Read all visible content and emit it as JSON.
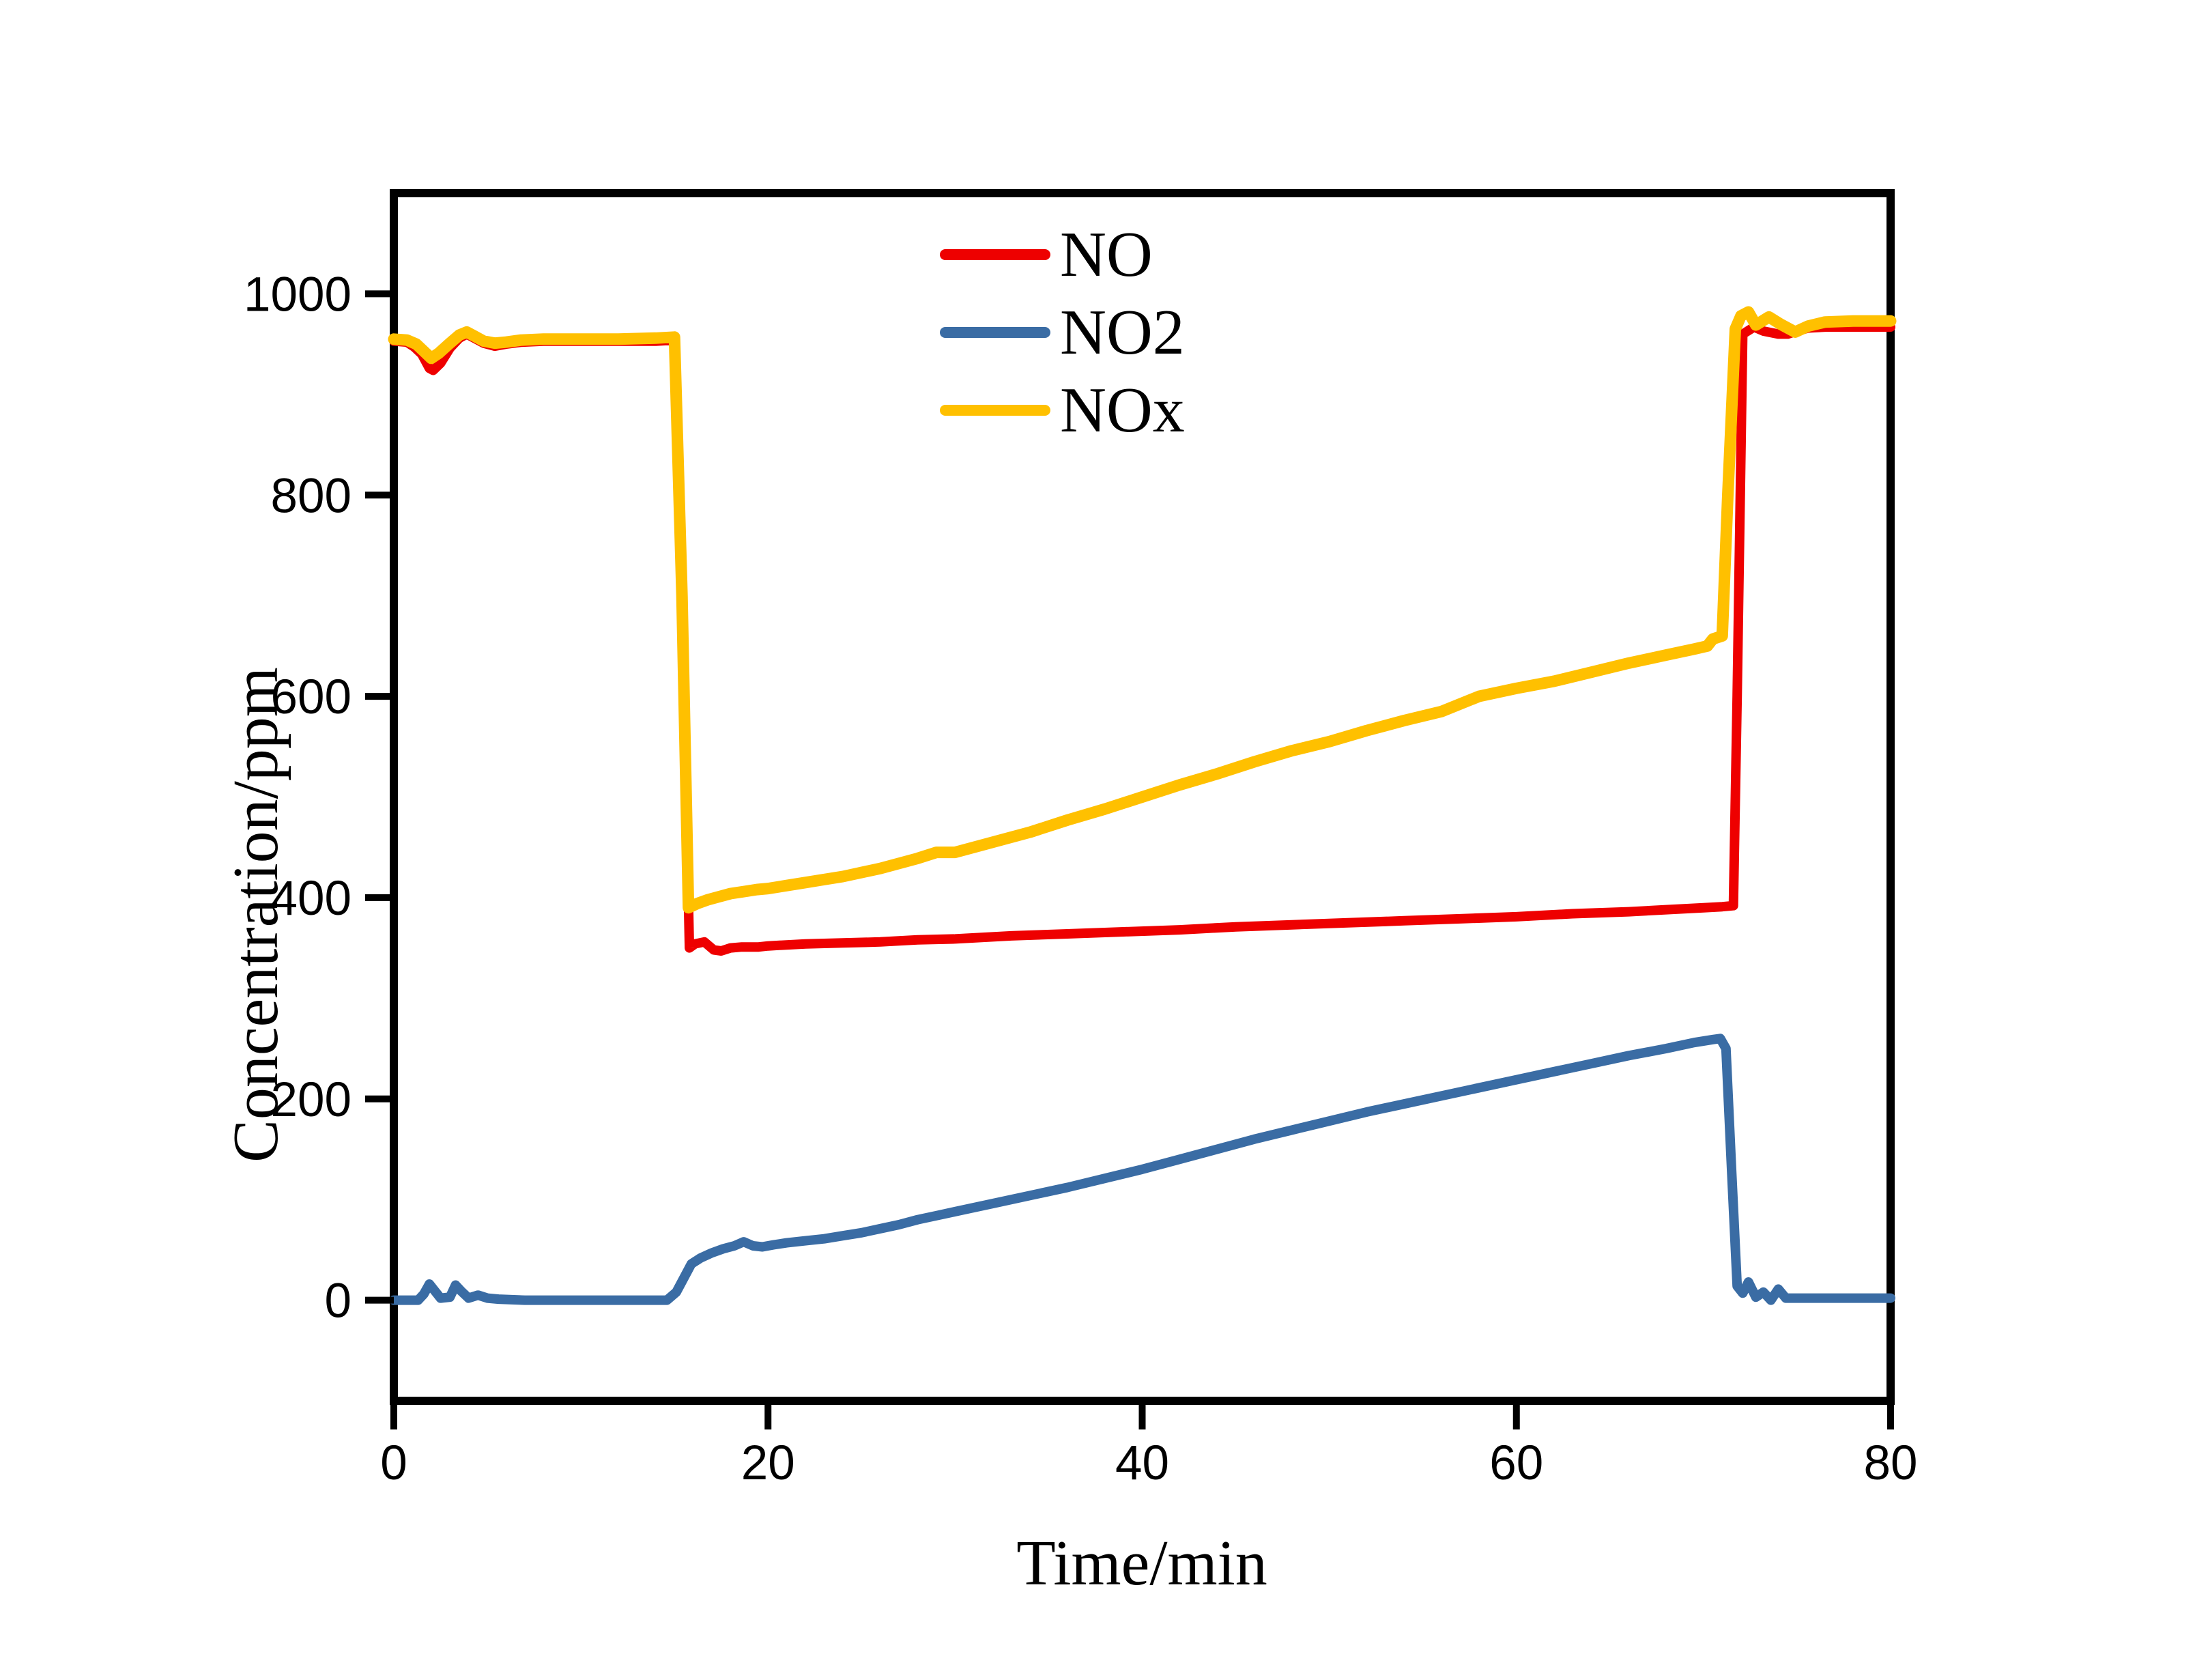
{
  "figure": {
    "background_color": "#ffffff",
    "frame_color": "#000000"
  },
  "axes": {
    "x": {
      "title": "Time/min",
      "ticks": [
        0,
        20,
        40,
        60,
        80
      ],
      "range": [
        0,
        80
      ]
    },
    "y": {
      "title": "Concentration/ppm",
      "ticks": [
        0,
        200,
        400,
        600,
        800,
        1000
      ],
      "range": [
        -100,
        1100
      ]
    }
  },
  "legend": {
    "position": "top-center-inside",
    "items": [
      {
        "label": "NO",
        "color": "#ee0000"
      },
      {
        "label": "NO2",
        "color": "#3a6ca4"
      },
      {
        "label": "NOx",
        "color": "#ffc000"
      }
    ]
  },
  "chart_data": {
    "type": "line",
    "title": "",
    "xlabel": "Time/min",
    "ylabel": "Concentration/ppm",
    "xlim": [
      0,
      80
    ],
    "ylim": [
      -100,
      1100
    ],
    "grid": false,
    "legend_position": "upper center inside",
    "series": [
      {
        "name": "NO",
        "color": "#ee0000",
        "stroke_width": 14,
        "points": [
          [
            0,
            953
          ],
          [
            0.7,
            952
          ],
          [
            1.1,
            947
          ],
          [
            1.5,
            940
          ],
          [
            1.9,
            926
          ],
          [
            2.1,
            924
          ],
          [
            2.5,
            931
          ],
          [
            3.0,
            946
          ],
          [
            3.5,
            956
          ],
          [
            3.9,
            960
          ],
          [
            4.3,
            956
          ],
          [
            4.8,
            951
          ],
          [
            5.4,
            948
          ],
          [
            6.0,
            950
          ],
          [
            6.8,
            952
          ],
          [
            8,
            953
          ],
          [
            10,
            953
          ],
          [
            12,
            953
          ],
          [
            14,
            953
          ],
          [
            15.0,
            954
          ],
          [
            15.4,
            700
          ],
          [
            15.8,
            350
          ],
          [
            16.1,
            354
          ],
          [
            16.6,
            356
          ],
          [
            17.1,
            348
          ],
          [
            17.5,
            347
          ],
          [
            18.0,
            350
          ],
          [
            18.6,
            351
          ],
          [
            19.5,
            351
          ],
          [
            20,
            352
          ],
          [
            22,
            354
          ],
          [
            24,
            355
          ],
          [
            26,
            356
          ],
          [
            28,
            358
          ],
          [
            30,
            359
          ],
          [
            33,
            362
          ],
          [
            36,
            364
          ],
          [
            39,
            366
          ],
          [
            42,
            368
          ],
          [
            45,
            371
          ],
          [
            48,
            373
          ],
          [
            51,
            375
          ],
          [
            54,
            377
          ],
          [
            57,
            379
          ],
          [
            60,
            381
          ],
          [
            63,
            384
          ],
          [
            66,
            386
          ],
          [
            68,
            388
          ],
          [
            70,
            390
          ],
          [
            71.0,
            391
          ],
          [
            71.6,
            392
          ],
          [
            71.8,
            600
          ],
          [
            72.1,
            960
          ],
          [
            72.7,
            967
          ],
          [
            73.2,
            963
          ],
          [
            74.0,
            960
          ],
          [
            74.5,
            960
          ],
          [
            75.0,
            963
          ],
          [
            75.6,
            966
          ],
          [
            76.5,
            967
          ],
          [
            78,
            967
          ],
          [
            80,
            967
          ]
        ]
      },
      {
        "name": "NOx",
        "color": "#ffc000",
        "stroke_width": 17,
        "points": [
          [
            0,
            955
          ],
          [
            0.7,
            954
          ],
          [
            1.2,
            950
          ],
          [
            1.6,
            943
          ],
          [
            2.0,
            936
          ],
          [
            2.4,
            941
          ],
          [
            3.0,
            951
          ],
          [
            3.5,
            959
          ],
          [
            3.9,
            962
          ],
          [
            4.3,
            958
          ],
          [
            4.8,
            953
          ],
          [
            5.4,
            951
          ],
          [
            6.0,
            952
          ],
          [
            6.8,
            954
          ],
          [
            8,
            955
          ],
          [
            10,
            955
          ],
          [
            12,
            955
          ],
          [
            14,
            956
          ],
          [
            15.0,
            957
          ],
          [
            15.4,
            700
          ],
          [
            15.75,
            390
          ],
          [
            16.2,
            394
          ],
          [
            16.8,
            398
          ],
          [
            17.4,
            401
          ],
          [
            18.0,
            404
          ],
          [
            18.7,
            406
          ],
          [
            19.4,
            408
          ],
          [
            20,
            409
          ],
          [
            21,
            412
          ],
          [
            22,
            415
          ],
          [
            23,
            418
          ],
          [
            24,
            421
          ],
          [
            25,
            425
          ],
          [
            26,
            429
          ],
          [
            27,
            434
          ],
          [
            28,
            439
          ],
          [
            29,
            445
          ],
          [
            30,
            445
          ],
          [
            32,
            455
          ],
          [
            34,
            465
          ],
          [
            36,
            477
          ],
          [
            38,
            488
          ],
          [
            40,
            500
          ],
          [
            42,
            512
          ],
          [
            44,
            523
          ],
          [
            46,
            535
          ],
          [
            48,
            546
          ],
          [
            50,
            555
          ],
          [
            52,
            566
          ],
          [
            54,
            576
          ],
          [
            56,
            585
          ],
          [
            58,
            600
          ],
          [
            60,
            608
          ],
          [
            62,
            615
          ],
          [
            64,
            624
          ],
          [
            66,
            633
          ],
          [
            68,
            641
          ],
          [
            69.5,
            647
          ],
          [
            70.2,
            650
          ],
          [
            70.5,
            657
          ],
          [
            71.0,
            660
          ],
          [
            71.3,
            800
          ],
          [
            71.7,
            965
          ],
          [
            72.0,
            978
          ],
          [
            72.4,
            982
          ],
          [
            72.8,
            969
          ],
          [
            73.5,
            977
          ],
          [
            74.1,
            970
          ],
          [
            74.9,
            962
          ],
          [
            75.6,
            968
          ],
          [
            76.5,
            972
          ],
          [
            78,
            973
          ],
          [
            80,
            973
          ]
        ]
      },
      {
        "name": "NO2",
        "color": "#3a6ca4",
        "stroke_width": 14,
        "points": [
          [
            0,
            0
          ],
          [
            1.3,
            0
          ],
          [
            1.6,
            6
          ],
          [
            1.9,
            16
          ],
          [
            2.2,
            9
          ],
          [
            2.5,
            2
          ],
          [
            3.0,
            3
          ],
          [
            3.3,
            15
          ],
          [
            3.6,
            9
          ],
          [
            4.0,
            2
          ],
          [
            4.5,
            5
          ],
          [
            5.0,
            2
          ],
          [
            5.6,
            1
          ],
          [
            7,
            0
          ],
          [
            9,
            0
          ],
          [
            11,
            0
          ],
          [
            13,
            0
          ],
          [
            14.6,
            0
          ],
          [
            15.1,
            8
          ],
          [
            15.5,
            22
          ],
          [
            15.9,
            36
          ],
          [
            16.4,
            42
          ],
          [
            17.0,
            47
          ],
          [
            17.6,
            51
          ],
          [
            18.2,
            54
          ],
          [
            18.7,
            58
          ],
          [
            19.2,
            54
          ],
          [
            19.7,
            53
          ],
          [
            20.3,
            55
          ],
          [
            21,
            57
          ],
          [
            22,
            59
          ],
          [
            23,
            61
          ],
          [
            24,
            64
          ],
          [
            25,
            67
          ],
          [
            26,
            71
          ],
          [
            27,
            75
          ],
          [
            28,
            80
          ],
          [
            29,
            84
          ],
          [
            30,
            88
          ],
          [
            32,
            96
          ],
          [
            34,
            104
          ],
          [
            36,
            112
          ],
          [
            38,
            121
          ],
          [
            40,
            130
          ],
          [
            42,
            140
          ],
          [
            44,
            150
          ],
          [
            46,
            160
          ],
          [
            48,
            169
          ],
          [
            50,
            178
          ],
          [
            52,
            187
          ],
          [
            54,
            195
          ],
          [
            56,
            203
          ],
          [
            58,
            211
          ],
          [
            60,
            219
          ],
          [
            62,
            227
          ],
          [
            64,
            235
          ],
          [
            66,
            243
          ],
          [
            68,
            250
          ],
          [
            69.5,
            256
          ],
          [
            70.5,
            259
          ],
          [
            70.9,
            260
          ],
          [
            71.2,
            250
          ],
          [
            71.5,
            130
          ],
          [
            71.8,
            14
          ],
          [
            72.1,
            7
          ],
          [
            72.4,
            18
          ],
          [
            72.8,
            3
          ],
          [
            73.2,
            8
          ],
          [
            73.6,
            0
          ],
          [
            74.0,
            11
          ],
          [
            74.4,
            2
          ],
          [
            75,
            2
          ],
          [
            76,
            2
          ],
          [
            78,
            2
          ],
          [
            80,
            2
          ]
        ]
      }
    ]
  }
}
